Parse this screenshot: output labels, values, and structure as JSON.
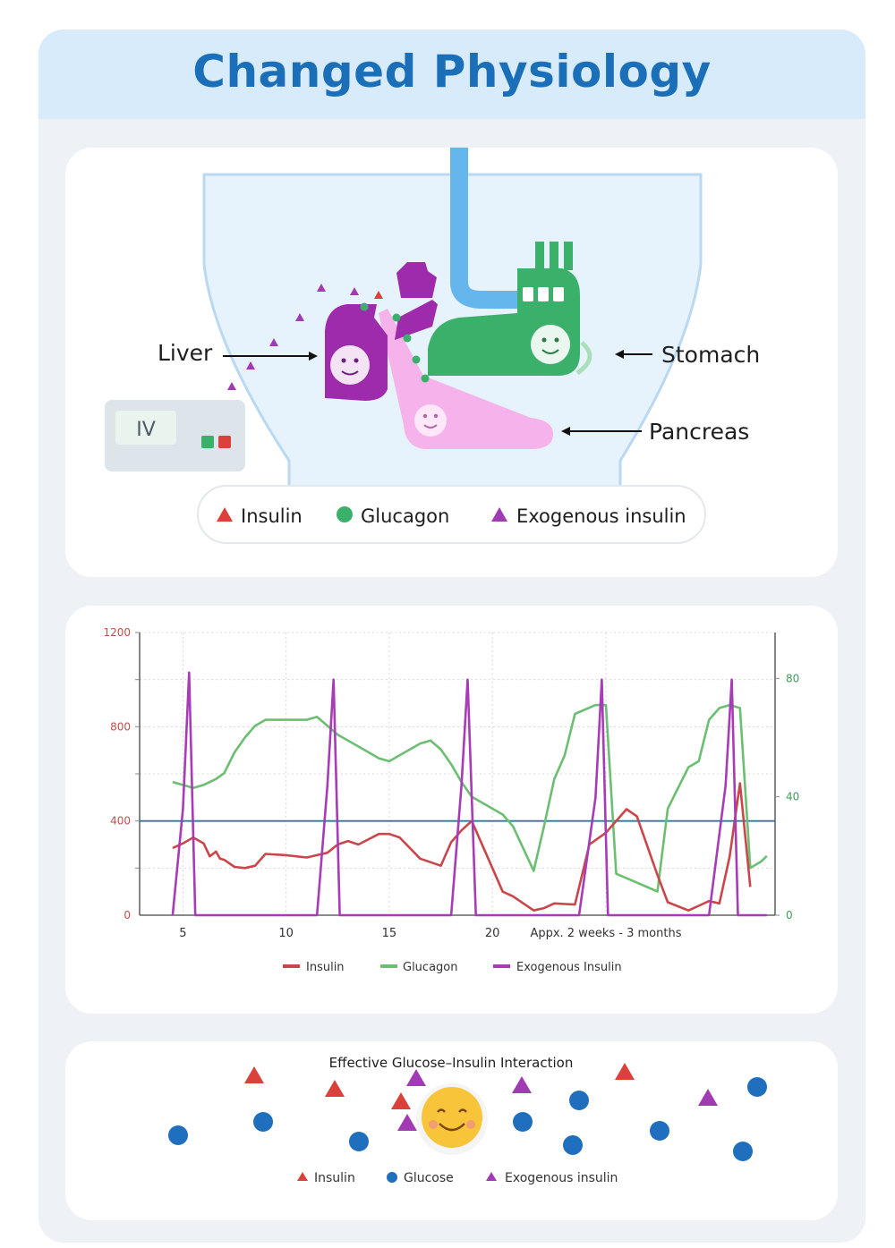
{
  "page": {
    "title": "Changed Physiology"
  },
  "anatomy": {
    "labels": {
      "liver": "Liver",
      "stomach": "Stomach",
      "pancreas": "Pancreas",
      "iv": "IV"
    },
    "legend": [
      {
        "label": "Insulin",
        "shape": "triangle",
        "color": "#d9413a"
      },
      {
        "label": "Glucagon",
        "shape": "circle",
        "color": "#3bb06a"
      },
      {
        "label": "Exogenous insulin",
        "shape": "triangle",
        "color": "#a13bb4"
      }
    ],
    "colors": {
      "liver": "#9d2bab",
      "stomach": "#3bb06a",
      "pancreas": "#f6b2ea",
      "esophagus": "#66b6ee",
      "body": "#e6f2fc"
    }
  },
  "chart_data": {
    "type": "line",
    "x_ticks": [
      "5",
      "10",
      "15",
      "20",
      "Appx. 2 weeks - 3 months"
    ],
    "x_tick_values": [
      5,
      10,
      15,
      20,
      25.5
    ],
    "xlim": [
      2.9,
      33.7
    ],
    "y_left": {
      "lim": [
        0,
        1200
      ],
      "ticks": [
        "0",
        "400",
        "800",
        "1200"
      ],
      "tick_values": [
        0,
        400,
        800,
        1200
      ],
      "color": "#c0504d"
    },
    "y_right": {
      "lim": [
        0,
        95.5
      ],
      "ticks": [
        "0",
        "40",
        "80"
      ],
      "tick_values": [
        0,
        40,
        80
      ],
      "color": "#3f9b5a"
    },
    "reference_line": {
      "value": 400,
      "axis": "left",
      "color": "#2a7a9b"
    },
    "series": [
      {
        "name": "Insulin",
        "axis": "left",
        "color": "#c9474a",
        "x": [
          4.5,
          5.0,
          5.5,
          6.0,
          6.3,
          6.6,
          6.8,
          7.0,
          7.5,
          8.0,
          8.5,
          9.0,
          10.0,
          11.0,
          12.0,
          12.5,
          13.0,
          13.5,
          14.5,
          15.0,
          15.5,
          16.5,
          17.5,
          18.0,
          18.5,
          19.0,
          20.5,
          21.0,
          22.0,
          22.5,
          23.0,
          24.0,
          24.7,
          25.5,
          26.0,
          26.5,
          27.0,
          28.0,
          28.5,
          29.5,
          30.0,
          30.5,
          31.0,
          31.5,
          32.0,
          32.5
        ],
        "y": [
          285,
          305,
          330,
          305,
          250,
          270,
          240,
          235,
          205,
          200,
          210,
          260,
          255,
          245,
          265,
          300,
          315,
          300,
          345,
          345,
          330,
          240,
          210,
          310,
          360,
          400,
          100,
          80,
          20,
          30,
          50,
          45,
          300,
          350,
          400,
          450,
          420,
          170,
          55,
          20,
          40,
          60,
          50,
          250,
          560,
          120
        ]
      },
      {
        "name": "Glucagon",
        "axis": "right",
        "color": "#6cbf72",
        "x": [
          4.5,
          5.0,
          5.5,
          6.0,
          6.3,
          6.6,
          7.0,
          7.5,
          8.0,
          8.5,
          9.0,
          10.0,
          11.0,
          11.5,
          12.0,
          12.5,
          13.5,
          14.5,
          15.0,
          15.5,
          16.5,
          17.0,
          17.5,
          18.0,
          18.5,
          19.0,
          19.5,
          20.5,
          21.0,
          22.0,
          22.5,
          23.0,
          23.5,
          24.0,
          25.0,
          25.5,
          26.0,
          27.0,
          28.0,
          28.5,
          29.5,
          30.0,
          30.5,
          31.0,
          31.5,
          32.0,
          32.5,
          33.0,
          33.3
        ],
        "y": [
          45,
          44,
          43,
          44,
          45,
          46,
          48,
          55,
          60,
          64,
          66,
          66,
          66,
          67,
          64,
          61,
          57,
          53,
          52,
          54,
          58,
          59,
          56,
          51,
          45,
          40,
          38,
          34,
          30,
          15,
          30,
          46,
          54,
          68,
          71,
          71,
          14,
          11,
          8,
          36,
          50,
          52,
          66,
          70,
          71,
          70,
          16,
          18,
          20
        ]
      },
      {
        "name": "Exogenous Insulin",
        "axis": "left",
        "color": "#a83bb6",
        "x": [
          4.5,
          5.0,
          5.3,
          5.6,
          11.5,
          12.0,
          12.3,
          12.6,
          18.0,
          18.5,
          18.8,
          19.2,
          24.2,
          25.0,
          25.3,
          25.6,
          30.5,
          31.3,
          31.6,
          31.9,
          33.3
        ],
        "y": [
          0,
          450,
          1030,
          0,
          0,
          550,
          1000,
          0,
          0,
          550,
          1000,
          0,
          0,
          500,
          1000,
          0,
          0,
          550,
          1000,
          0,
          0
        ]
      }
    ],
    "legend": [
      "Insulin",
      "Glucagon",
      "Exogenous Insulin"
    ],
    "legend_position": "bottom",
    "grid": true
  },
  "interaction": {
    "title": "Effective Glucose–Insulin Interaction",
    "legend": [
      {
        "label": "Insulin",
        "shape": "triangle",
        "color": "#d9413a"
      },
      {
        "label": "Glucose",
        "shape": "circle",
        "color": "#1f6fbe"
      },
      {
        "label": "Exogenous insulin",
        "shape": "triangle",
        "color": "#a13bb4"
      }
    ]
  }
}
